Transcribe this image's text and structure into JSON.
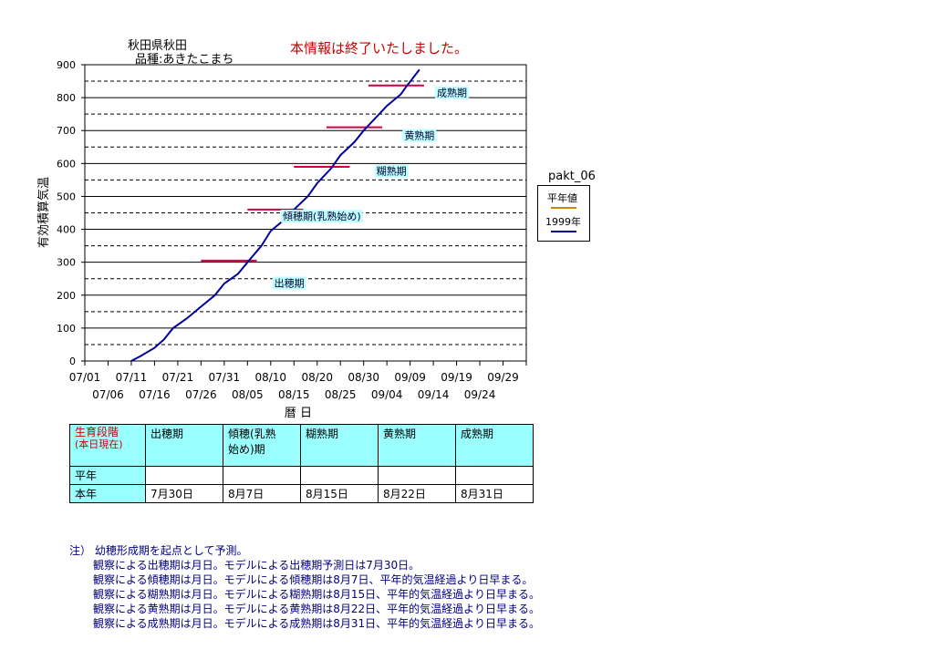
{
  "header": {
    "location": "秋田県秋田",
    "variety": "品種:あきたこまち",
    "notice": "本情報は終了いたしました。"
  },
  "chart_data": {
    "type": "line",
    "ylabel": "有効積算気温",
    "xlabel": "暦 日",
    "ylim": [
      0,
      900
    ],
    "yticks": [
      0,
      100,
      200,
      300,
      400,
      500,
      600,
      700,
      800,
      900
    ],
    "xrange": [
      "07/01",
      "10/04"
    ],
    "xtick_labels_top": [
      "07/01",
      "07/11",
      "07/21",
      "07/31",
      "08/10",
      "08/20",
      "08/30",
      "09/09",
      "09/19",
      "09/29"
    ],
    "xtick_labels_bottom": [
      "07/06",
      "07/16",
      "07/26",
      "08/05",
      "08/15",
      "08/25",
      "09/04",
      "09/14",
      "09/24"
    ],
    "grid": "horizontal",
    "legend": {
      "title": "pakt_06",
      "placement": "right",
      "entries": [
        {
          "name": "平年値",
          "color": "#cc8800"
        },
        {
          "name": "1999年",
          "color": "#000099"
        }
      ]
    },
    "series": [
      {
        "name": "1999年",
        "color": "#000099",
        "points": [
          [
            "07/11",
            0
          ],
          [
            "07/13",
            15
          ],
          [
            "07/16",
            40
          ],
          [
            "07/18",
            65
          ],
          [
            "07/20",
            100
          ],
          [
            "07/23",
            130
          ],
          [
            "07/26",
            165
          ],
          [
            "07/29",
            200
          ],
          [
            "07/31",
            235
          ],
          [
            "08/03",
            265
          ],
          [
            "08/05",
            300
          ],
          [
            "08/08",
            350
          ],
          [
            "08/10",
            395
          ],
          [
            "08/13",
            430
          ],
          [
            "08/15",
            460
          ],
          [
            "08/18",
            500
          ],
          [
            "08/20",
            540
          ],
          [
            "08/23",
            585
          ],
          [
            "08/25",
            625
          ],
          [
            "08/28",
            665
          ],
          [
            "08/30",
            700
          ],
          [
            "09/02",
            745
          ],
          [
            "09/04",
            775
          ],
          [
            "09/07",
            810
          ],
          [
            "09/08",
            830
          ],
          [
            "09/11",
            885
          ]
        ]
      }
    ],
    "stage_markers": [
      {
        "label": "出穂期",
        "value": 305,
        "from": "07/26",
        "to": "08/07"
      },
      {
        "label": "傾穂期(乳熟始め)",
        "value": 460,
        "from": "08/05",
        "to": "08/17"
      },
      {
        "label": "糊熟期",
        "value": 590,
        "from": "08/15",
        "to": "08/27"
      },
      {
        "label": "黄熟期",
        "value": 710,
        "from": "08/22",
        "to": "09/03"
      },
      {
        "label": "成熟期",
        "value": 837,
        "from": "08/31",
        "to": "09/12"
      }
    ],
    "stage_labels": [
      {
        "text": "出穂期",
        "value": 237,
        "date": "08/14"
      },
      {
        "text": "傾穂期(乳熟始め)",
        "value": 440,
        "date": "08/21"
      },
      {
        "text": "糊熟期",
        "value": 577,
        "date": "09/05"
      },
      {
        "text": "黄熟期",
        "value": 685,
        "date": "09/11"
      },
      {
        "text": "成熟期",
        "value": 815,
        "date": "09/18"
      }
    ]
  },
  "table": {
    "header_label": [
      "生育段階",
      "(本日現在)"
    ],
    "columns": [
      [
        "出穂期"
      ],
      [
        "傾穂(乳熟",
        "始め)期"
      ],
      [
        "糊熟期"
      ],
      [
        "黄熟期"
      ],
      [
        "成熟期"
      ]
    ],
    "rows": [
      {
        "label": "平年",
        "values": [
          "",
          "",
          "",
          "",
          ""
        ]
      },
      {
        "label": "本年",
        "values": [
          "7月30日",
          "8月7日",
          "8月15日",
          "8月22日",
          "8月31日"
        ]
      }
    ]
  },
  "notes": {
    "first": "注） 幼穂形成期を起点として予測。",
    "lines": [
      "観察による出穂期は月日。モデルによる出穂期予測日は7月30日。",
      "観察による傾穂期は月日。モデルによる傾穂期は8月7日、平年的気温経過より日早まる。",
      "観察による糊熟期は月日。モデルによる糊熟期は8月15日、平年的気温経過より日早まる。",
      "観察による黄熟期は月日。モデルによる黄熟期は8月22日、平年的気温経過より日早まる。",
      "観察による成熟期は月日。モデルによる成熟期は8月31日、平年的気温経過より日早まる。"
    ]
  }
}
